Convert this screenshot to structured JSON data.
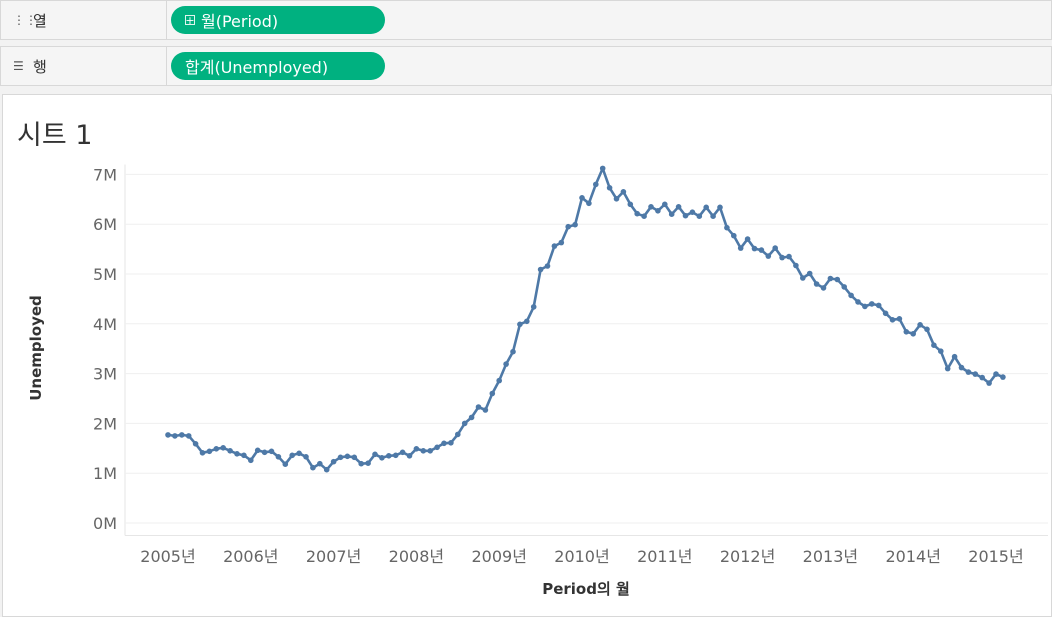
{
  "shelves": {
    "columns": {
      "label": "열",
      "icon": "columns-icon",
      "pill": "월(Period)"
    },
    "rows": {
      "label": "행",
      "icon": "rows-icon",
      "pill": "합계(Unemployed)"
    }
  },
  "sheet": {
    "title": "시트 1"
  },
  "colors": {
    "line": "#4e79a7",
    "pill": "#00b180"
  },
  "chart_data": {
    "type": "line",
    "xlabel": "Period의 월",
    "ylabel": "Unemployed",
    "x_ticks": [
      "2005년",
      "2006년",
      "2007년",
      "2008년",
      "2009년",
      "2010년",
      "2011년",
      "2012년",
      "2013년",
      "2014년",
      "2015년"
    ],
    "y_ticks": [
      "0M",
      "1M",
      "2M",
      "3M",
      "4M",
      "5M",
      "6M",
      "7M"
    ],
    "ylim": [
      -0.25,
      7.2
    ],
    "x_start": "2005-01",
    "grid": true,
    "series": [
      {
        "values": [
          1.77,
          1.75,
          1.77,
          1.75,
          1.59,
          1.41,
          1.44,
          1.49,
          1.51,
          1.45,
          1.39,
          1.36,
          1.26,
          1.46,
          1.42,
          1.44,
          1.33,
          1.18,
          1.36,
          1.4,
          1.33,
          1.11,
          1.19,
          1.07,
          1.23,
          1.32,
          1.34,
          1.32,
          1.19,
          1.2,
          1.38,
          1.31,
          1.35,
          1.36,
          1.42,
          1.35,
          1.49,
          1.45,
          1.45,
          1.52,
          1.6,
          1.61,
          1.78,
          2.0,
          2.12,
          2.33,
          2.27,
          2.6,
          2.86,
          3.19,
          3.44,
          3.99,
          4.05,
          4.34,
          5.09,
          5.16,
          5.56,
          5.63,
          5.95,
          5.99,
          6.53,
          6.42,
          6.8,
          7.12,
          6.73,
          6.51,
          6.65,
          6.4,
          6.21,
          6.16,
          6.35,
          6.27,
          6.4,
          6.2,
          6.35,
          6.17,
          6.24,
          6.16,
          6.34,
          6.16,
          6.34,
          5.93,
          5.77,
          5.52,
          5.7,
          5.51,
          5.48,
          5.36,
          5.52,
          5.33,
          5.35,
          5.17,
          4.92,
          5.01,
          4.8,
          4.72,
          4.91,
          4.89,
          4.74,
          4.57,
          4.44,
          4.35,
          4.4,
          4.37,
          4.21,
          4.08,
          4.1,
          3.84,
          3.8,
          3.98,
          3.89,
          3.57,
          3.45,
          3.1,
          3.34,
          3.12,
          3.03,
          2.99,
          2.92,
          2.81,
          2.99,
          2.93
        ]
      }
    ]
  }
}
